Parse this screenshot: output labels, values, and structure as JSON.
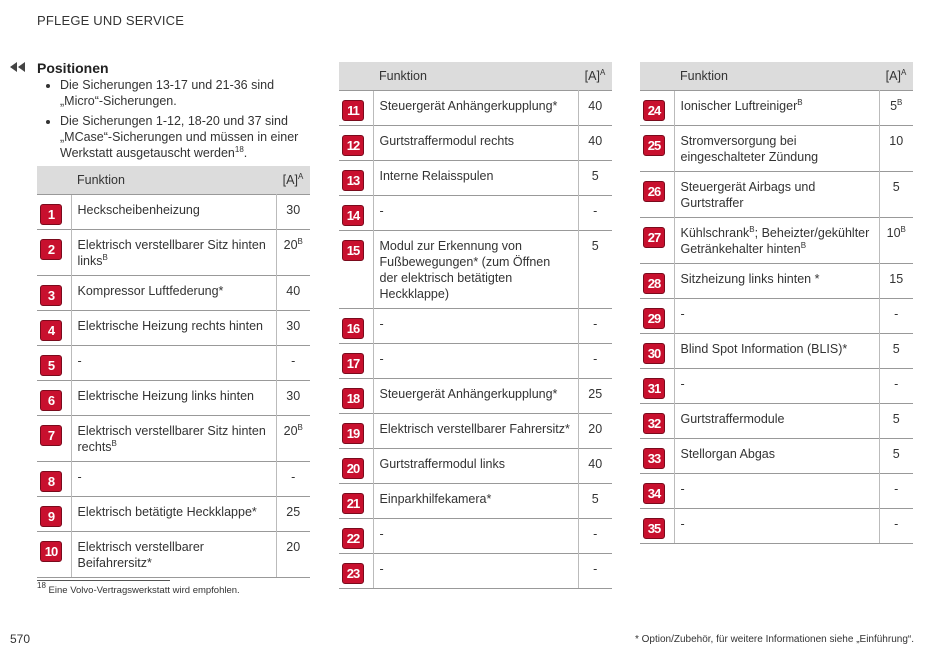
{
  "header": {
    "title": "PFLEGE UND SERVICE"
  },
  "section": {
    "title": "Positionen",
    "bullets": [
      [
        {
          "text": "Die Sicherungen 13-17 und 21-36 sind „Micro“-Sicherungen."
        }
      ],
      [
        {
          "text": "Die Sicherungen 1-12, 18-20 und 37 sind „MCase“-Sicherungen und müssen in einer Werkstatt ausgetauscht werden",
          "sup": "18"
        },
        {
          "text": "."
        }
      ]
    ]
  },
  "table_header": {
    "function": "Funktion",
    "amp": {
      "text": "[A]",
      "sup": "A"
    }
  },
  "tables": [
    [
      {
        "n": "1",
        "f": [
          {
            "text": "Heckscheibenheizung"
          }
        ],
        "a": {
          "text": "30"
        }
      },
      {
        "n": "2",
        "f": [
          {
            "text": "Elektrisch verstellbarer Sitz hinten links",
            "sup": "B"
          }
        ],
        "a": {
          "text": "20",
          "sup": "B"
        }
      },
      {
        "n": "3",
        "f": [
          {
            "text": "Kompressor Luftfederung*"
          }
        ],
        "a": {
          "text": "40"
        }
      },
      {
        "n": "4",
        "f": [
          {
            "text": "Elektrische Heizung rechts hinten"
          }
        ],
        "a": {
          "text": "30"
        }
      },
      {
        "n": "5",
        "f": [
          {
            "text": "-"
          }
        ],
        "a": {
          "text": "-"
        }
      },
      {
        "n": "6",
        "f": [
          {
            "text": "Elektrische Heizung links hinten"
          }
        ],
        "a": {
          "text": "30"
        }
      },
      {
        "n": "7",
        "f": [
          {
            "text": "Elektrisch verstellbarer Sitz hinten rechts",
            "sup": "B"
          }
        ],
        "a": {
          "text": "20",
          "sup": "B"
        }
      },
      {
        "n": "8",
        "f": [
          {
            "text": "-"
          }
        ],
        "a": {
          "text": "-"
        }
      },
      {
        "n": "9",
        "f": [
          {
            "text": "Elektrisch betätigte Heckklappe*"
          }
        ],
        "a": {
          "text": "25"
        }
      },
      {
        "n": "10",
        "f": [
          {
            "text": "Elektrisch verstellbarer Beifahrersitz*"
          }
        ],
        "a": {
          "text": "20"
        }
      }
    ],
    [
      {
        "n": "11",
        "f": [
          {
            "text": "Steuergerät Anhängerkupplung*"
          }
        ],
        "a": {
          "text": "40"
        }
      },
      {
        "n": "12",
        "f": [
          {
            "text": "Gurtstraffermodul rechts"
          }
        ],
        "a": {
          "text": "40"
        }
      },
      {
        "n": "13",
        "f": [
          {
            "text": "Interne Relaisspulen"
          }
        ],
        "a": {
          "text": "5"
        }
      },
      {
        "n": "14",
        "f": [
          {
            "text": "-"
          }
        ],
        "a": {
          "text": "-"
        }
      },
      {
        "n": "15",
        "f": [
          {
            "text": "Modul zur Erkennung von Fußbewegungen* (zum Öffnen der elektrisch betätigten Heckklappe)"
          }
        ],
        "a": {
          "text": "5"
        }
      },
      {
        "n": "16",
        "f": [
          {
            "text": "-"
          }
        ],
        "a": {
          "text": "-"
        }
      },
      {
        "n": "17",
        "f": [
          {
            "text": "-"
          }
        ],
        "a": {
          "text": "-"
        }
      },
      {
        "n": "18",
        "f": [
          {
            "text": "Steuergerät Anhängerkupplung*"
          }
        ],
        "a": {
          "text": "25"
        }
      },
      {
        "n": "19",
        "f": [
          {
            "text": "Elektrisch verstellbarer Fahrersitz*"
          }
        ],
        "a": {
          "text": "20"
        }
      },
      {
        "n": "20",
        "f": [
          {
            "text": "Gurtstraffermodul links"
          }
        ],
        "a": {
          "text": "40"
        }
      },
      {
        "n": "21",
        "f": [
          {
            "text": "Einparkhilfekamera*"
          }
        ],
        "a": {
          "text": "5"
        }
      },
      {
        "n": "22",
        "f": [
          {
            "text": "-"
          }
        ],
        "a": {
          "text": "-"
        }
      },
      {
        "n": "23",
        "f": [
          {
            "text": "-"
          }
        ],
        "a": {
          "text": "-"
        }
      }
    ],
    [
      {
        "n": "24",
        "f": [
          {
            "text": "Ionischer Luftreiniger",
            "sup": "B"
          }
        ],
        "a": {
          "text": "5",
          "sup": "B"
        }
      },
      {
        "n": "25",
        "f": [
          {
            "text": "Stromversorgung bei eingeschalteter Zündung"
          }
        ],
        "a": {
          "text": "10"
        }
      },
      {
        "n": "26",
        "f": [
          {
            "text": "Steuergerät Airbags und Gurtstraffer"
          }
        ],
        "a": {
          "text": "5"
        }
      },
      {
        "n": "27",
        "f": [
          {
            "text": "Kühlschrank",
            "sup": "B"
          },
          {
            "text": "; Beheizter/gekühlter Getränkehalter hinten",
            "sup": "B"
          }
        ],
        "a": {
          "text": "10",
          "sup": "B"
        }
      },
      {
        "n": "28",
        "f": [
          {
            "text": "Sitzheizung links hinten *"
          }
        ],
        "a": {
          "text": "15"
        }
      },
      {
        "n": "29",
        "f": [
          {
            "text": "-"
          }
        ],
        "a": {
          "text": "-"
        }
      },
      {
        "n": "30",
        "f": [
          {
            "text": "Blind Spot Information (BLIS)*"
          }
        ],
        "a": {
          "text": "5"
        }
      },
      {
        "n": "31",
        "f": [
          {
            "text": "-"
          }
        ],
        "a": {
          "text": "-"
        }
      },
      {
        "n": "32",
        "f": [
          {
            "text": "Gurtstraffermodule"
          }
        ],
        "a": {
          "text": "5"
        }
      },
      {
        "n": "33",
        "f": [
          {
            "text": "Stellorgan Abgas"
          }
        ],
        "a": {
          "text": "5"
        }
      },
      {
        "n": "34",
        "f": [
          {
            "text": "-"
          }
        ],
        "a": {
          "text": "-"
        }
      },
      {
        "n": "35",
        "f": [
          {
            "text": "-"
          }
        ],
        "a": {
          "text": "-"
        }
      }
    ]
  ],
  "footnote": {
    "sup": "18",
    "text": " Eine Volvo-Vertragswerkstatt wird empfohlen."
  },
  "page_number": "570",
  "note": "* Option/Zubehör, für weitere Informationen siehe „Einführung“."
}
